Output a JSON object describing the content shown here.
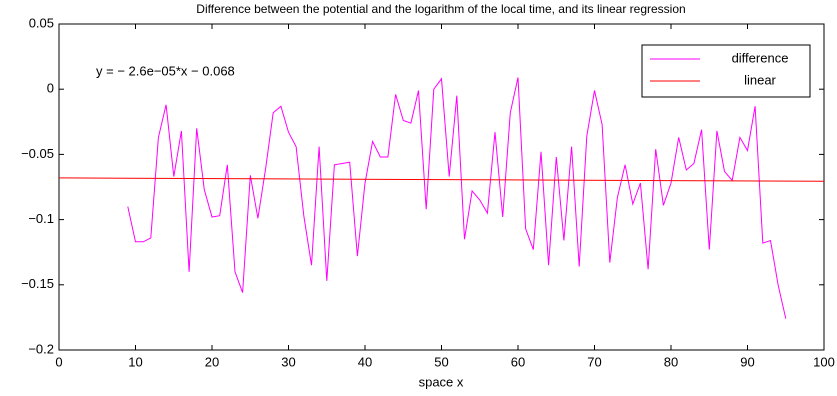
{
  "chart_data": {
    "type": "line",
    "title": "Difference between the potential and the logarithm of the local time, and its linear regression",
    "x_label": "space x",
    "annotation": "y = − 2.6e−05*x − 0.068",
    "series": [
      {
        "name": "difference",
        "color": "#ff00ff",
        "x": [
          9,
          10,
          11,
          12,
          13,
          14,
          15,
          16,
          17,
          18,
          19,
          20,
          21,
          22,
          23,
          24,
          25,
          26,
          27,
          28,
          29,
          30,
          31,
          32,
          33,
          34,
          35,
          36,
          37,
          38,
          39,
          40,
          41,
          42,
          43,
          44,
          45,
          46,
          47,
          48,
          49,
          50,
          51,
          52,
          53,
          54,
          55,
          56,
          57,
          58,
          59,
          60,
          61,
          62,
          63,
          64,
          65,
          66,
          67,
          68,
          69,
          70,
          71,
          72,
          73,
          74,
          75,
          76,
          77,
          78,
          79,
          80,
          81,
          82,
          83,
          84,
          85,
          86,
          87,
          88,
          89,
          90,
          91,
          92,
          93,
          94,
          95
        ],
        "values": [
          -0.09,
          -0.117,
          -0.117,
          -0.114,
          -0.037,
          -0.012,
          -0.067,
          -0.032,
          -0.14,
          -0.03,
          -0.077,
          -0.098,
          -0.097,
          -0.058,
          -0.14,
          -0.156,
          -0.066,
          -0.099,
          -0.061,
          -0.018,
          -0.013,
          -0.033,
          -0.044,
          -0.097,
          -0.135,
          -0.044,
          -0.147,
          -0.058,
          -0.057,
          -0.056,
          -0.128,
          -0.072,
          -0.04,
          -0.052,
          -0.052,
          -0.004,
          -0.024,
          -0.026,
          -0.001,
          -0.092,
          0.0,
          0.008,
          -0.067,
          -0.005,
          -0.115,
          -0.078,
          -0.085,
          -0.095,
          -0.033,
          -0.098,
          -0.018,
          0.009,
          -0.107,
          -0.123,
          -0.048,
          -0.135,
          -0.052,
          -0.116,
          -0.044,
          -0.136,
          -0.036,
          -0.001,
          -0.027,
          -0.133,
          -0.083,
          -0.058,
          -0.088,
          -0.072,
          -0.138,
          -0.046,
          -0.089,
          -0.072,
          -0.037,
          -0.062,
          -0.057,
          -0.031,
          -0.123,
          -0.032,
          -0.063,
          -0.07,
          -0.037,
          -0.047,
          -0.013,
          -0.118,
          -0.116,
          -0.15,
          -0.176
        ]
      },
      {
        "name": "linear",
        "color": "#ff0000",
        "x": [
          0,
          100
        ],
        "values": [
          -0.068,
          -0.0706
        ]
      }
    ],
    "xlim": [
      0,
      100
    ],
    "xticks": [
      0,
      10,
      20,
      30,
      40,
      50,
      60,
      70,
      80,
      90,
      100
    ],
    "ylim": [
      -0.2,
      0.05
    ],
    "yticks": [
      {
        "value": -0.2,
        "label": "−0.2"
      },
      {
        "value": -0.15,
        "label": "−0.15"
      },
      {
        "value": -0.1,
        "label": "−0.1"
      },
      {
        "value": -0.05,
        "label": "−0.05"
      },
      0,
      0.05
    ],
    "legend": "upper right",
    "grid": false
  }
}
